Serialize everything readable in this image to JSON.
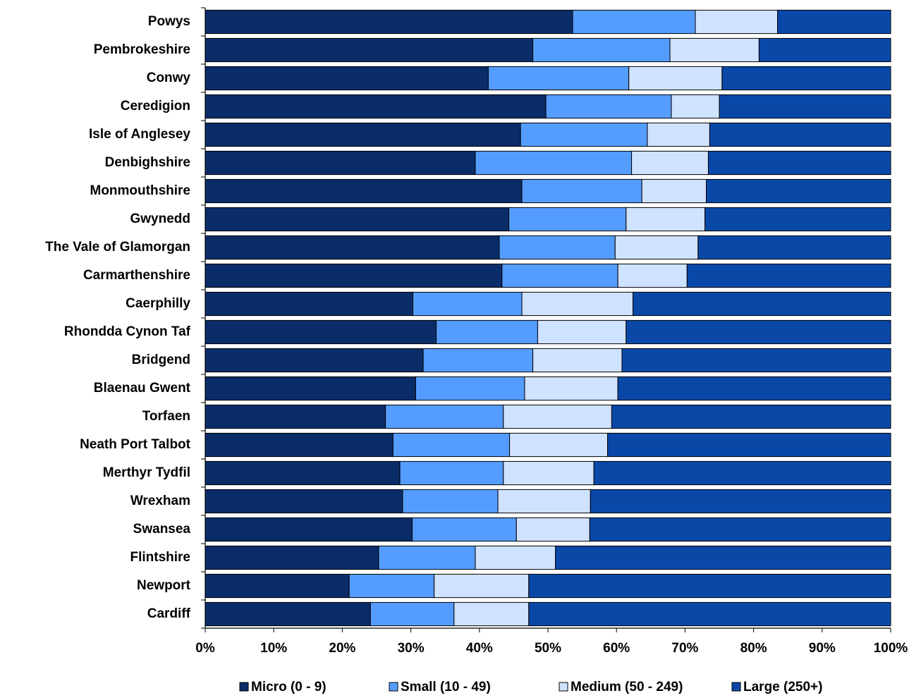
{
  "chart_data": {
    "type": "stacked-bar-horizontal",
    "categories": [
      "Powys",
      "Pembrokeshire",
      "Conwy",
      "Ceredigion",
      "Isle of Anglesey",
      "Denbighshire",
      "Monmouthshire",
      "Gwynedd",
      "The Vale of Glamorgan",
      "Carmarthenshire",
      "Caerphilly",
      "Rhondda Cynon Taf",
      "Bridgend",
      "Blaenau Gwent",
      "Torfaen",
      "Neath Port Talbot",
      "Merthyr Tydfil",
      "Wrexham",
      "Swansea",
      "Flintshire",
      "Newport",
      "Cardiff"
    ],
    "series": [
      {
        "name": "Micro (0 - 9)",
        "color": "#0a2d69",
        "values": [
          53.6,
          47.8,
          41.3,
          49.7,
          46.0,
          39.4,
          46.2,
          44.3,
          42.9,
          43.3,
          30.3,
          33.7,
          31.8,
          30.7,
          26.3,
          27.4,
          28.4,
          28.8,
          30.2,
          25.3,
          21.0,
          24.1
        ]
      },
      {
        "name": "Small (10 - 49)",
        "color": "#559cff",
        "values": [
          17.9,
          20.0,
          20.5,
          18.3,
          18.5,
          22.8,
          17.5,
          17.1,
          16.9,
          16.9,
          15.9,
          14.8,
          16.0,
          15.9,
          17.2,
          17.0,
          15.1,
          13.9,
          15.2,
          14.1,
          12.4,
          12.2
        ]
      },
      {
        "name": "Medium (50 - 249)",
        "color": "#cfe2ff",
        "values": [
          12.0,
          13.0,
          13.6,
          7.0,
          9.1,
          11.2,
          9.4,
          11.5,
          12.1,
          10.1,
          16.2,
          12.9,
          13.0,
          13.6,
          15.8,
          14.3,
          13.2,
          13.5,
          10.7,
          11.7,
          13.8,
          10.9
        ]
      },
      {
        "name": "Large (250+)",
        "color": "#0a48a8",
        "values": [
          16.5,
          19.2,
          24.6,
          25.0,
          26.4,
          26.6,
          26.9,
          27.1,
          28.1,
          29.7,
          37.6,
          38.6,
          39.2,
          39.8,
          40.7,
          41.3,
          43.3,
          43.8,
          43.9,
          48.9,
          52.8,
          52.8
        ]
      }
    ],
    "xlim": [
      0,
      100
    ],
    "xticks": [
      {
        "value": 0,
        "label": "0%"
      },
      {
        "value": 10,
        "label": "10%"
      },
      {
        "value": 20,
        "label": "20%"
      },
      {
        "value": 30,
        "label": "30%"
      },
      {
        "value": 40,
        "label": "40%"
      },
      {
        "value": 50,
        "label": "50%"
      },
      {
        "value": 60,
        "label": "60%"
      },
      {
        "value": 70,
        "label": "70%"
      },
      {
        "value": 80,
        "label": "80%"
      },
      {
        "value": 90,
        "label": "90%"
      },
      {
        "value": 100,
        "label": "100%"
      }
    ],
    "legend": "bottom"
  }
}
